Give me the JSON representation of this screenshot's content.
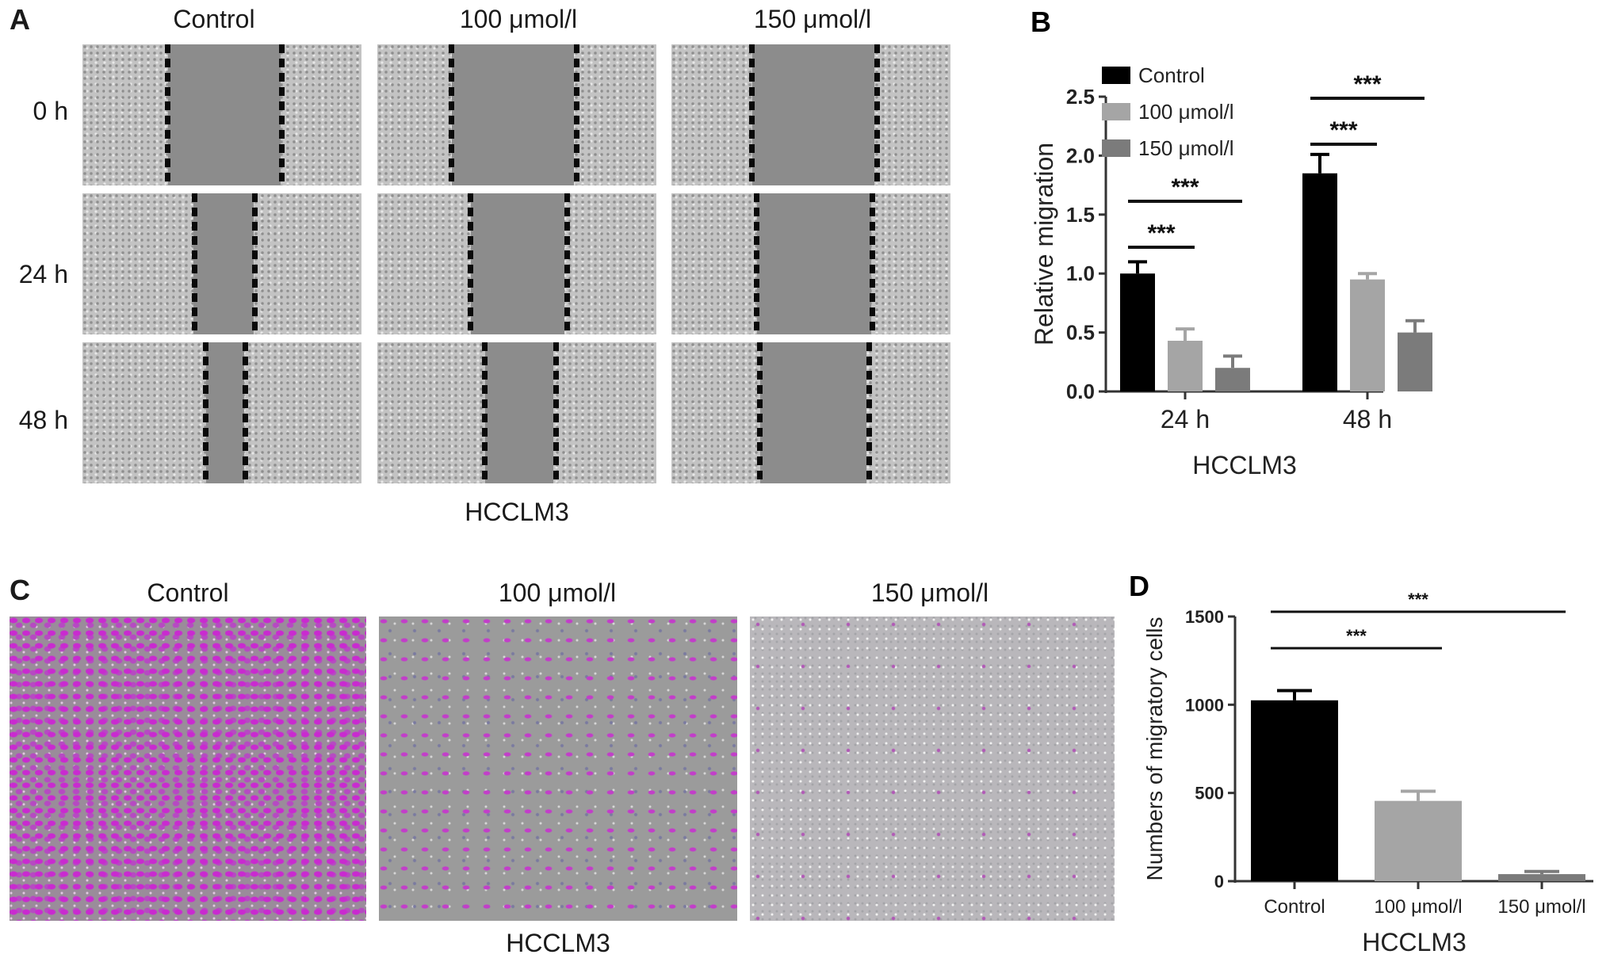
{
  "panelA": {
    "label": "A",
    "conditions": [
      "Control",
      "100 μmol/l",
      "150 μmol/l"
    ],
    "times": [
      "0 h",
      "24 h",
      "48 h"
    ],
    "caption": "HCCLM3"
  },
  "panelC": {
    "label": "C",
    "conditions": [
      "Control",
      "100 μmol/l",
      "150 μmol/l"
    ],
    "caption": "HCCLM3"
  },
  "chart_data": [
    {
      "panel": "B",
      "type": "bar",
      "categories": [
        "24 h",
        "48 h"
      ],
      "series": [
        {
          "name": "Control",
          "color": "#000000",
          "values": [
            1.0,
            1.85
          ],
          "errors": [
            0.1,
            0.16
          ]
        },
        {
          "name": "100 μmol/l",
          "color": "#a5a5a5",
          "values": [
            0.43,
            0.95
          ],
          "errors": [
            0.1,
            0.05
          ]
        },
        {
          "name": "150 μmol/l",
          "color": "#7b7b7b",
          "values": [
            0.2,
            0.5
          ],
          "errors": [
            0.1,
            0.1
          ]
        }
      ],
      "xlabel": "HCCLM3",
      "ylabel": "Relative migration",
      "ylim": [
        0,
        2.5
      ],
      "yticks": [
        "0.0",
        "0.5",
        "1.0",
        "1.5",
        "2.0",
        "2.5"
      ],
      "legend_position": "top-left",
      "annotations": [
        {
          "category": "24 h",
          "from": "Control",
          "to": "100 μmol/l",
          "text": "***"
        },
        {
          "category": "24 h",
          "from": "Control",
          "to": "150 μmol/l",
          "text": "***"
        },
        {
          "category": "48 h",
          "from": "Control",
          "to": "100 μmol/l",
          "text": "***"
        },
        {
          "category": "48 h",
          "from": "Control",
          "to": "150 μmol/l",
          "text": "***"
        }
      ]
    },
    {
      "panel": "D",
      "type": "bar",
      "categories": [
        "Control",
        "100 μmol/l",
        "150 μmol/l"
      ],
      "values": [
        1025,
        455,
        40
      ],
      "errors": [
        55,
        55,
        15
      ],
      "colors": [
        "#000000",
        "#a5a5a5",
        "#7b7b7b"
      ],
      "xlabel": "HCCLM3",
      "ylabel": "Numbers of migratory cells",
      "ylim": [
        0,
        1500
      ],
      "yticks": [
        "0",
        "500",
        "1000",
        "1500"
      ],
      "annotations": [
        {
          "from": "Control",
          "to": "100 μmol/l",
          "text": "***"
        },
        {
          "from": "Control",
          "to": "150 μmol/l",
          "text": "***"
        }
      ]
    }
  ]
}
